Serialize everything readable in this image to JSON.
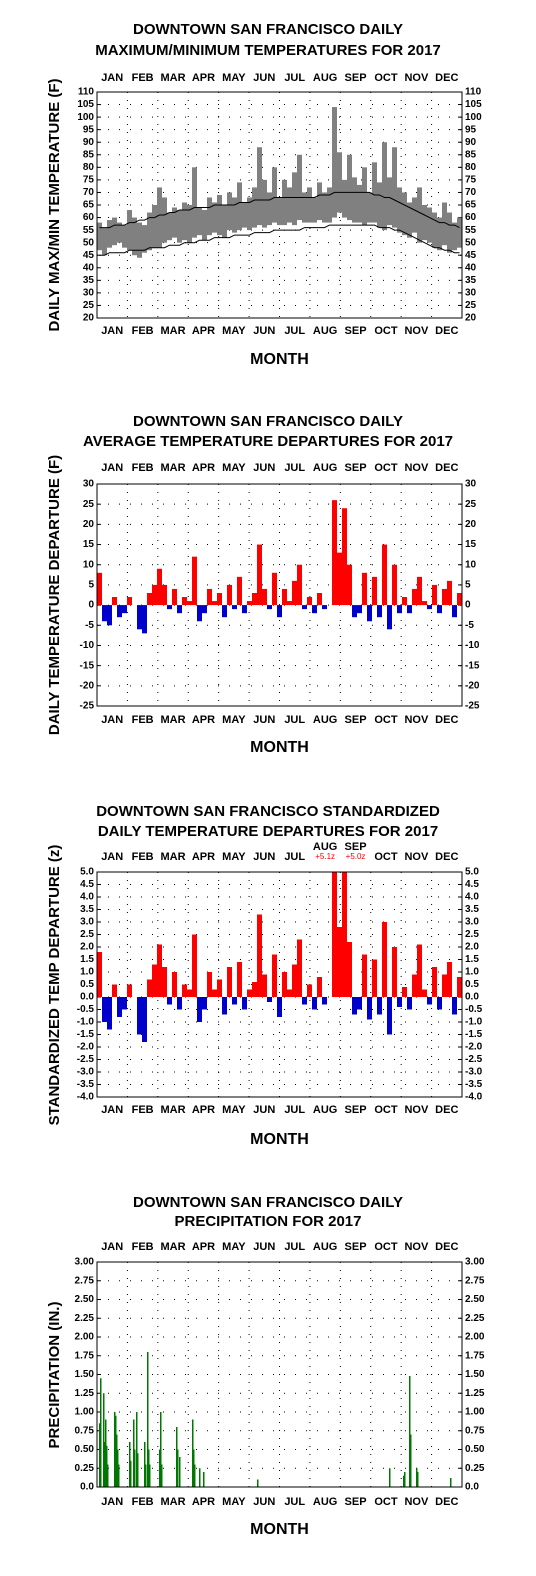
{
  "chart_data": [
    {
      "type": "range",
      "title": [
        "DOWNTOWN SAN FRANCISCO DAILY",
        "MAXIMUM/MINIMUM TEMPERATURES FOR 2017"
      ],
      "ylabel": "DAILY MAX/MIN TEMPERATURE (F)",
      "xlabel": "MONTH",
      "months": [
        "JAN",
        "FEB",
        "MAR",
        "APR",
        "MAY",
        "JUN",
        "JUL",
        "AUG",
        "SEP",
        "OCT",
        "NOV",
        "DEC"
      ],
      "xlim": [
        1,
        366
      ],
      "ylim": [
        20,
        110
      ],
      "yticks": [
        20,
        25,
        30,
        35,
        40,
        45,
        50,
        55,
        60,
        65,
        70,
        75,
        80,
        85,
        90,
        95,
        100,
        105,
        110
      ],
      "grid": true,
      "x": [
        1,
        6,
        11,
        16,
        21,
        26,
        31,
        36,
        41,
        46,
        51,
        56,
        61,
        66,
        71,
        76,
        81,
        86,
        91,
        96,
        101,
        106,
        111,
        116,
        121,
        126,
        131,
        136,
        141,
        146,
        151,
        156,
        161,
        166,
        171,
        176,
        181,
        186,
        191,
        196,
        201,
        206,
        211,
        216,
        221,
        226,
        231,
        236,
        241,
        246,
        251,
        256,
        261,
        266,
        271,
        276,
        281,
        286,
        291,
        296,
        301,
        306,
        311,
        316,
        321,
        326,
        331,
        336,
        341,
        346,
        351,
        356,
        361
      ],
      "series": [
        {
          "color": "#808080",
          "values": [
            58,
            56,
            59,
            60,
            58,
            57,
            63,
            60,
            58,
            57,
            62,
            65,
            72,
            68,
            62,
            64,
            63,
            66,
            65,
            80,
            64,
            63,
            68,
            66,
            69,
            65,
            70,
            68,
            74,
            66,
            68,
            72,
            88,
            75,
            70,
            80,
            68,
            75,
            72,
            78,
            85,
            70,
            72,
            68,
            74,
            70,
            72,
            104,
            86,
            75,
            85,
            76,
            73,
            80,
            70,
            82,
            74,
            90,
            76,
            88,
            72,
            70,
            66,
            68,
            72,
            65,
            64,
            62,
            60,
            66,
            62,
            58,
            60
          ]
        },
        {
          "color": "#808080",
          "values": [
            47,
            45,
            48,
            49,
            50,
            48,
            47,
            45,
            44,
            46,
            47,
            48,
            48,
            50,
            51,
            52,
            50,
            51,
            50,
            52,
            53,
            51,
            53,
            54,
            53,
            52,
            55,
            54,
            55,
            56,
            55,
            56,
            57,
            56,
            57,
            58,
            57,
            57,
            58,
            57,
            59,
            58,
            58,
            58,
            59,
            58,
            58,
            60,
            62,
            60,
            59,
            58,
            58,
            57,
            58,
            58,
            56,
            55,
            57,
            56,
            54,
            53,
            52,
            54,
            50,
            51,
            50,
            48,
            47,
            49,
            46,
            47,
            48
          ]
        },
        {
          "color": "#000000",
          "values": [
            56,
            56,
            56,
            57,
            57,
            57,
            58,
            58,
            59,
            59,
            60,
            60,
            61,
            61,
            62,
            62,
            63,
            63,
            63,
            64,
            64,
            64,
            64,
            65,
            65,
            65,
            65,
            65,
            66,
            66,
            66,
            67,
            67,
            67,
            67,
            68,
            68,
            68,
            68,
            68,
            68,
            68,
            68,
            68,
            69,
            69,
            69,
            70,
            70,
            70,
            70,
            70,
            70,
            70,
            70,
            69,
            69,
            68,
            68,
            67,
            66,
            65,
            64,
            63,
            62,
            61,
            60,
            59,
            58,
            58,
            57,
            57,
            56
          ]
        },
        {
          "color": "#000000",
          "values": [
            45,
            45,
            46,
            46,
            46,
            46,
            47,
            47,
            47,
            47,
            48,
            48,
            48,
            48,
            49,
            49,
            49,
            50,
            50,
            50,
            51,
            51,
            51,
            52,
            52,
            52,
            52,
            53,
            53,
            53,
            53,
            54,
            54,
            54,
            54,
            55,
            55,
            55,
            55,
            55,
            55,
            56,
            56,
            56,
            56,
            56,
            57,
            57,
            57,
            57,
            57,
            57,
            57,
            57,
            57,
            57,
            56,
            56,
            56,
            55,
            55,
            54,
            53,
            52,
            51,
            50,
            49,
            48,
            48,
            47,
            47,
            46,
            46
          ]
        }
      ]
    },
    {
      "type": "bar",
      "title": [
        "DOWNTOWN SAN FRANCISCO DAILY",
        "AVERAGE TEMPERATURE DEPARTURES FOR 2017"
      ],
      "ylabel": "DAILY TEMPERATURE DEPARTURE (F)",
      "xlabel": "MONTH",
      "months": [
        "JAN",
        "FEB",
        "MAR",
        "APR",
        "MAY",
        "JUN",
        "JUL",
        "AUG",
        "SEP",
        "OCT",
        "NOV",
        "DEC"
      ],
      "xlim": [
        1,
        366
      ],
      "ylim": [
        -25,
        30
      ],
      "yticks": [
        -25,
        -20,
        -15,
        -10,
        -5,
        0,
        5,
        10,
        15,
        20,
        25,
        30
      ],
      "grid": true,
      "pos_color": "#ff0000",
      "neg_color": "#0000cc",
      "x": [
        1,
        6,
        11,
        16,
        21,
        26,
        31,
        36,
        41,
        46,
        51,
        56,
        61,
        66,
        71,
        76,
        81,
        86,
        91,
        96,
        101,
        106,
        111,
        116,
        121,
        126,
        131,
        136,
        141,
        146,
        151,
        156,
        161,
        166,
        171,
        176,
        181,
        186,
        191,
        196,
        201,
        206,
        211,
        216,
        221,
        226,
        231,
        236,
        241,
        246,
        251,
        256,
        261,
        266,
        271,
        276,
        281,
        286,
        291,
        296,
        301,
        306,
        311,
        316,
        321,
        326,
        331,
        336,
        341,
        346,
        351,
        356,
        361
      ],
      "values": [
        8,
        -4,
        -5,
        2,
        -3,
        -2,
        2,
        0,
        -6,
        -7,
        3,
        5,
        9,
        5,
        -1,
        4,
        -2,
        2,
        1,
        12,
        -4,
        -2,
        4,
        1,
        3,
        -3,
        5,
        -1,
        7,
        -2,
        1,
        3,
        15,
        4,
        -1,
        8,
        -3,
        4,
        1,
        6,
        10,
        -1,
        2,
        -2,
        3,
        -1,
        0,
        26,
        13,
        24,
        10,
        -3,
        -2,
        8,
        -4,
        7,
        -3,
        15,
        -6,
        10,
        -2,
        2,
        -2,
        4,
        7,
        1,
        -1,
        5,
        -2,
        4,
        6,
        -3,
        3
      ]
    },
    {
      "type": "bar",
      "title": [
        "DOWNTOWN SAN FRANCISCO STANDARDIZED",
        "DAILY TEMPERATURE DEPARTURES FOR 2017"
      ],
      "ylabel": "STANDARDIZED TEMP DEPARTURE (z)",
      "xlabel": "MONTH",
      "months": [
        "JAN",
        "FEB",
        "MAR",
        "APR",
        "MAY",
        "JUN",
        "JUL",
        "AUG",
        "SEP",
        "OCT",
        "NOV",
        "DEC"
      ],
      "annotations": [
        "+5.1z",
        "+5.0z"
      ],
      "xlim": [
        1,
        366
      ],
      "ylim": [
        -4,
        5
      ],
      "yticks": [
        {
          "value": -4,
          "label": "-4.0"
        },
        -3.5,
        {
          "value": -3,
          "label": "-3.0"
        },
        -2.5,
        {
          "value": -2,
          "label": "-2.0"
        },
        -1.5,
        {
          "value": -1,
          "label": "-1.0"
        },
        -0.5,
        {
          "value": 0,
          "label": "0.0"
        },
        0.5,
        {
          "value": 1,
          "label": "1.0"
        },
        1.5,
        {
          "value": 2,
          "label": "2.0"
        },
        2.5,
        {
          "value": 3,
          "label": "3.0"
        },
        3.5,
        {
          "value": 4,
          "label": "4.0"
        },
        4.5,
        {
          "value": 5,
          "label": "5.0"
        }
      ],
      "grid": true,
      "pos_color": "#ff0000",
      "neg_color": "#0000cc",
      "x": [
        1,
        6,
        11,
        16,
        21,
        26,
        31,
        36,
        41,
        46,
        51,
        56,
        61,
        66,
        71,
        76,
        81,
        86,
        91,
        96,
        101,
        106,
        111,
        116,
        121,
        126,
        131,
        136,
        141,
        146,
        151,
        156,
        161,
        166,
        171,
        176,
        181,
        186,
        191,
        196,
        201,
        206,
        211,
        216,
        221,
        226,
        231,
        236,
        241,
        246,
        251,
        256,
        261,
        266,
        271,
        276,
        281,
        286,
        291,
        296,
        301,
        306,
        311,
        316,
        321,
        326,
        331,
        336,
        341,
        346,
        351,
        356,
        361
      ],
      "values": [
        1.8,
        -1.0,
        -1.3,
        0.5,
        -0.8,
        -0.5,
        0.5,
        0,
        -1.5,
        -1.8,
        0.7,
        1.3,
        2.1,
        1.2,
        -0.3,
        1.0,
        -0.5,
        0.5,
        0.3,
        2.5,
        -1.0,
        -0.5,
        1.0,
        0.3,
        0.7,
        -0.7,
        1.2,
        -0.3,
        1.4,
        -0.5,
        0.3,
        0.6,
        3.3,
        0.9,
        -0.2,
        1.7,
        -0.8,
        1.0,
        0.3,
        1.3,
        2.3,
        -0.3,
        0.5,
        -0.5,
        0.8,
        -0.3,
        0,
        5.1,
        2.8,
        5.0,
        2.2,
        -0.7,
        -0.5,
        1.7,
        -0.9,
        1.5,
        -0.7,
        3.0,
        -1.5,
        2.0,
        -0.4,
        0.4,
        -0.5,
        0.9,
        2.1,
        0.3,
        -0.3,
        1.2,
        -0.5,
        0.9,
        1.4,
        -0.7,
        0.8
      ]
    },
    {
      "type": "bar",
      "title": [
        "DOWNTOWN SAN FRANCISCO DAILY",
        "PRECIPITATION FOR 2017"
      ],
      "ylabel": "PRECIPITATION (IN.)",
      "xlabel": "MONTH",
      "months": [
        "JAN",
        "FEB",
        "MAR",
        "APR",
        "MAY",
        "JUN",
        "JUL",
        "AUG",
        "SEP",
        "OCT",
        "NOV",
        "DEC"
      ],
      "xlim": [
        1,
        366
      ],
      "ylim": [
        0,
        3
      ],
      "yticks": [
        {
          "value": 0,
          "label": "0.0"
        },
        0.25,
        {
          "value": 0.5,
          "label": "0.50"
        },
        0.75,
        {
          "value": 1,
          "label": "1.00"
        },
        1.25,
        {
          "value": 1.5,
          "label": "1.50"
        },
        1.75,
        {
          "value": 2,
          "label": "2.00"
        },
        2.25,
        {
          "value": 2.5,
          "label": "2.50"
        },
        2.75,
        {
          "value": 3,
          "label": "3.00"
        }
      ],
      "grid": true,
      "color": "#007700",
      "x": [
        3,
        4,
        7,
        8,
        9,
        10,
        11,
        18,
        19,
        20,
        21,
        22,
        33,
        34,
        37,
        38,
        40,
        41,
        48,
        49,
        51,
        52,
        53,
        63,
        64,
        65,
        80,
        81,
        83,
        96,
        97,
        98,
        103,
        107,
        161,
        293,
        307,
        308,
        313,
        314,
        320,
        321,
        354
      ],
      "values": [
        0.85,
        1.45,
        1.25,
        0.6,
        0.9,
        0.55,
        0.3,
        1.0,
        0.95,
        0.7,
        0.5,
        0.3,
        0.6,
        0.35,
        0.9,
        0.5,
        1.0,
        0.45,
        0.6,
        0.3,
        1.8,
        0.5,
        0.3,
        0.5,
        1.0,
        0.3,
        0.8,
        0.5,
        0.4,
        0.9,
        0.5,
        0.3,
        0.25,
        0.2,
        0.1,
        0.25,
        0.15,
        0.2,
        1.48,
        0.7,
        0.25,
        0.2,
        0.12
      ]
    }
  ]
}
